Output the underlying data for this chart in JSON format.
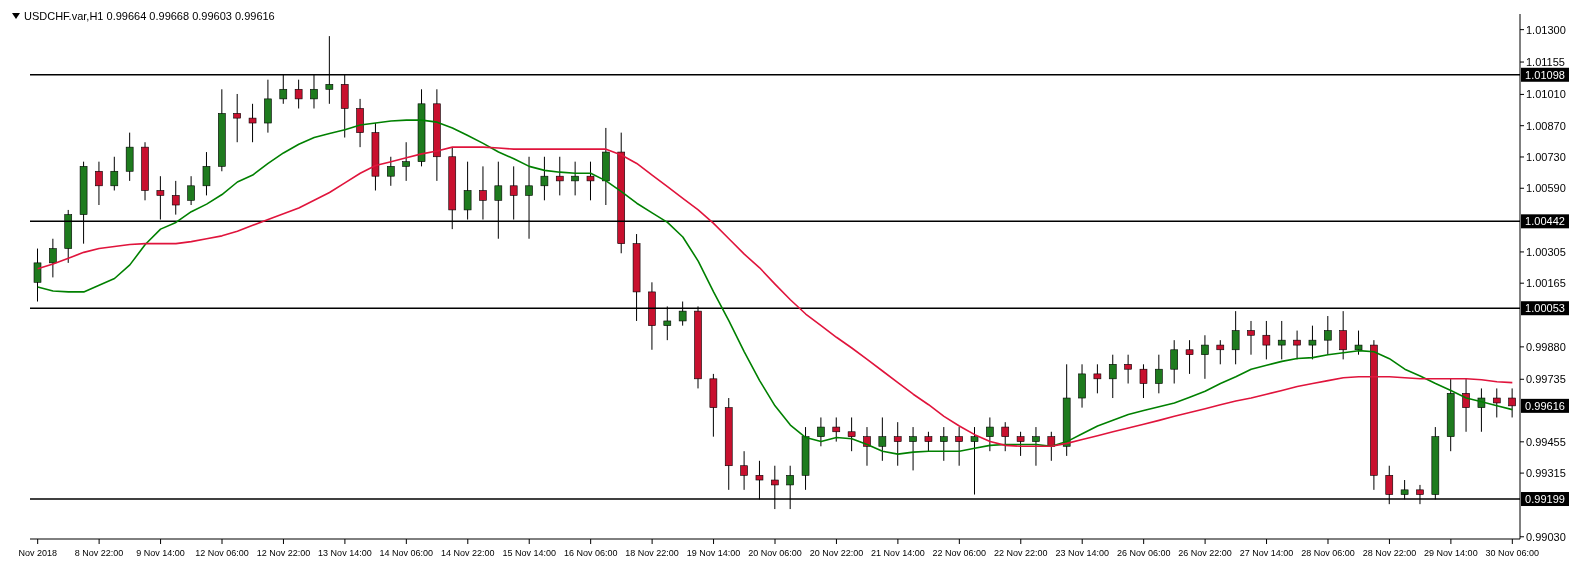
{
  "chart_data": {
    "type": "candlestick",
    "title": "USDCHF.var,H1 0.99664 0.99668 0.99603 0.99616",
    "categories": [
      "Nov 2018",
      null,
      null,
      null,
      "8 Nov 22:00",
      null,
      null,
      null,
      "9 Nov 14:00",
      null,
      null,
      null,
      "12 Nov 06:00",
      null,
      null,
      null,
      "12 Nov 22:00",
      null,
      null,
      null,
      "13 Nov 14:00",
      null,
      null,
      null,
      "14 Nov 06:00",
      null,
      null,
      null,
      "14 Nov 22:00",
      null,
      null,
      null,
      "15 Nov 14:00",
      null,
      null,
      null,
      "16 Nov 06:00",
      null,
      null,
      null,
      "18 Nov 22:00",
      null,
      null,
      null,
      "19 Nov 14:00",
      null,
      null,
      null,
      "20 Nov 06:00",
      null,
      null,
      null,
      "20 Nov 22:00",
      null,
      null,
      null,
      "21 Nov 14:00",
      null,
      null,
      null,
      "22 Nov 06:00",
      null,
      null,
      null,
      "22 Nov 22:00",
      null,
      null,
      null,
      "23 Nov 14:00",
      null,
      null,
      null,
      "26 Nov 06:00",
      null,
      null,
      null,
      "26 Nov 22:00",
      null,
      null,
      null,
      "27 Nov 14:00",
      null,
      null,
      null,
      "28 Nov 06:00",
      null,
      null,
      null,
      "28 Nov 22:00",
      null,
      null,
      null,
      "29 Nov 14:00",
      null,
      null,
      null,
      "30 Nov 06:00"
    ],
    "ohlc": [
      [
        1.00169,
        1.0032,
        1.00083,
        1.00256
      ],
      [
        1.00256,
        1.00364,
        1.00191,
        1.0032
      ],
      [
        1.0032,
        1.00493,
        1.00256,
        1.00472
      ],
      [
        1.00472,
        1.00709,
        1.00342,
        1.00688
      ],
      [
        1.00666,
        1.00709,
        1.00515,
        1.00601
      ],
      [
        1.00601,
        1.00731,
        1.0058,
        1.00666
      ],
      [
        1.00666,
        1.00839,
        1.00623,
        1.00774
      ],
      [
        1.00774,
        1.00796,
        1.00536,
        1.0058
      ],
      [
        1.0058,
        1.00644,
        1.0045,
        1.00558
      ],
      [
        1.00558,
        1.00623,
        1.00472,
        1.00515
      ],
      [
        1.00536,
        1.00644,
        1.00515,
        1.00601
      ],
      [
        1.00601,
        1.00752,
        1.00558,
        1.00688
      ],
      [
        1.00688,
        1.01033,
        1.00666,
        1.00925
      ],
      [
        1.00925,
        1.01012,
        1.00796,
        1.00904
      ],
      [
        1.00904,
        1.00968,
        1.00796,
        1.00882
      ],
      [
        1.00882,
        1.01076,
        1.00839,
        1.0099
      ],
      [
        1.0099,
        1.01098,
        1.00968,
        1.01033
      ],
      [
        1.01033,
        1.01076,
        1.00947,
        1.0099
      ],
      [
        1.0099,
        1.01098,
        1.00947,
        1.01033
      ],
      [
        1.01033,
        1.01271,
        1.00968,
        1.01055
      ],
      [
        1.01055,
        1.01098,
        1.00817,
        1.00947
      ],
      [
        1.00947,
        1.0099,
        1.00774,
        1.00839
      ],
      [
        1.00839,
        1.00882,
        1.0058,
        1.00644
      ],
      [
        1.00644,
        1.00731,
        1.00601,
        1.00688
      ],
      [
        1.00688,
        1.00796,
        1.00623,
        1.00709
      ],
      [
        1.00709,
        1.01033,
        1.00688,
        1.00968
      ],
      [
        1.00968,
        1.01033,
        1.00623,
        1.00731
      ],
      [
        1.00731,
        1.00774,
        1.00407,
        1.00493
      ],
      [
        1.00493,
        1.00709,
        1.0045,
        1.0058
      ],
      [
        1.0058,
        1.00688,
        1.0045,
        1.00536
      ],
      [
        1.00536,
        1.00709,
        1.00364,
        1.00601
      ],
      [
        1.00601,
        1.00688,
        1.0045,
        1.00558
      ],
      [
        1.00558,
        1.00731,
        1.00364,
        1.00601
      ],
      [
        1.00601,
        1.00731,
        1.00536,
        1.00644
      ],
      [
        1.00644,
        1.00731,
        1.00558,
        1.00623
      ],
      [
        1.00623,
        1.00709,
        1.00558,
        1.00644
      ],
      [
        1.00644,
        1.00709,
        1.00536,
        1.00623
      ],
      [
        1.00623,
        1.0086,
        1.00515,
        1.00752
      ],
      [
        1.00752,
        1.00839,
        1.00299,
        1.00342
      ],
      [
        1.00342,
        1.00385,
        0.99996,
        1.00126
      ],
      [
        1.00126,
        1.00169,
        0.99867,
        0.99975
      ],
      [
        0.99975,
        1.00061,
        0.9991,
        0.99996
      ],
      [
        0.99996,
        1.00083,
        0.99975,
        1.0004
      ],
      [
        1.0004,
        1.00061,
        0.99694,
        0.99737
      ],
      [
        0.99737,
        0.99759,
        0.99478,
        0.99608
      ],
      [
        0.99608,
        0.99651,
        0.9924,
        0.99348
      ],
      [
        0.99348,
        0.99413,
        0.9924,
        0.99305
      ],
      [
        0.99305,
        0.9937,
        0.99197,
        0.99284
      ],
      [
        0.99284,
        0.99348,
        0.99154,
        0.99262
      ],
      [
        0.99262,
        0.99348,
        0.99154,
        0.99305
      ],
      [
        0.99305,
        0.99521,
        0.9924,
        0.99478
      ],
      [
        0.99478,
        0.99564,
        0.99435,
        0.99521
      ],
      [
        0.99521,
        0.99564,
        0.99456,
        0.995
      ],
      [
        0.995,
        0.99564,
        0.99413,
        0.99478
      ],
      [
        0.99478,
        0.99521,
        0.99348,
        0.99435
      ],
      [
        0.99435,
        0.99564,
        0.9937,
        0.99478
      ],
      [
        0.99478,
        0.99543,
        0.99348,
        0.99456
      ],
      [
        0.99456,
        0.99521,
        0.99327,
        0.99478
      ],
      [
        0.99478,
        0.995,
        0.99413,
        0.99456
      ],
      [
        0.99456,
        0.99521,
        0.9937,
        0.99478
      ],
      [
        0.99478,
        0.99521,
        0.99348,
        0.99456
      ],
      [
        0.99456,
        0.99521,
        0.99219,
        0.99478
      ],
      [
        0.99478,
        0.99564,
        0.99413,
        0.99521
      ],
      [
        0.99521,
        0.99543,
        0.99413,
        0.99478
      ],
      [
        0.99478,
        0.995,
        0.99392,
        0.99456
      ],
      [
        0.99456,
        0.99521,
        0.99348,
        0.99478
      ],
      [
        0.99478,
        0.995,
        0.9937,
        0.99435
      ],
      [
        0.99435,
        0.99802,
        0.99392,
        0.99651
      ],
      [
        0.99651,
        0.99802,
        0.99608,
        0.99759
      ],
      [
        0.99759,
        0.99802,
        0.99672,
        0.99737
      ],
      [
        0.99737,
        0.99845,
        0.99651,
        0.99802
      ],
      [
        0.99802,
        0.99845,
        0.99716,
        0.9978
      ],
      [
        0.9978,
        0.99802,
        0.99651,
        0.99716
      ],
      [
        0.99716,
        0.99845,
        0.99672,
        0.9978
      ],
      [
        0.9978,
        0.9991,
        0.99716,
        0.99867
      ],
      [
        0.99867,
        0.9991,
        0.99759,
        0.99845
      ],
      [
        0.99845,
        0.99932,
        0.99737,
        0.99888
      ],
      [
        0.99888,
        0.9991,
        0.99802,
        0.99867
      ],
      [
        0.99867,
        1.0004,
        0.99802,
        0.99953
      ],
      [
        0.99953,
        0.99996,
        0.99845,
        0.99932
      ],
      [
        0.99932,
        0.99996,
        0.99824,
        0.99888
      ],
      [
        0.99888,
        0.99996,
        0.99824,
        0.9991
      ],
      [
        0.9991,
        0.99953,
        0.99824,
        0.99888
      ],
      [
        0.99888,
        0.99975,
        0.99824,
        0.9991
      ],
      [
        0.9991,
        1.00018,
        0.99845,
        0.99953
      ],
      [
        0.99953,
        1.0004,
        0.99824,
        0.99867
      ],
      [
        0.99867,
        0.99953,
        0.99845,
        0.99888
      ],
      [
        0.99888,
        0.9991,
        0.9924,
        0.99305
      ],
      [
        0.99305,
        0.99348,
        0.99176,
        0.99219
      ],
      [
        0.99219,
        0.99284,
        0.99197,
        0.9924
      ],
      [
        0.9924,
        0.99262,
        0.99176,
        0.99219
      ],
      [
        0.99219,
        0.99521,
        0.99197,
        0.99478
      ],
      [
        0.99478,
        0.99737,
        0.99413,
        0.99672
      ],
      [
        0.99672,
        0.99737,
        0.995,
        0.99608
      ],
      [
        0.99608,
        0.99694,
        0.995,
        0.99651
      ],
      [
        0.99651,
        0.99694,
        0.99564,
        0.99629
      ],
      [
        0.99651,
        0.99694,
        0.99564,
        0.99616
      ]
    ],
    "colors": [
      "#1e7b1e",
      "#1e7b1e",
      "#1e7b1e",
      "#1e7b1e",
      "#c8102e",
      "#1e7b1e",
      "#1e7b1e",
      "#c8102e",
      "#c8102e",
      "#c8102e",
      "#1e7b1e",
      "#1e7b1e",
      "#1e7b1e",
      "#c8102e",
      "#c8102e",
      "#1e7b1e",
      "#1e7b1e",
      "#c8102e",
      "#1e7b1e",
      "#1e7b1e",
      "#c8102e",
      "#c8102e",
      "#c8102e",
      "#1e7b1e",
      "#1e7b1e",
      "#1e7b1e",
      "#c8102e",
      "#c8102e",
      "#1e7b1e",
      "#c8102e",
      "#1e7b1e",
      "#c8102e",
      "#1e7b1e",
      "#1e7b1e",
      "#c8102e",
      "#1e7b1e",
      "#c8102e",
      "#1e7b1e",
      "#c8102e",
      "#c8102e",
      "#c8102e",
      "#1e7b1e",
      "#1e7b1e",
      "#c8102e",
      "#c8102e",
      "#c8102e",
      "#c8102e",
      "#c8102e",
      "#c8102e",
      "#1e7b1e",
      "#1e7b1e",
      "#1e7b1e",
      "#c8102e",
      "#c8102e",
      "#c8102e",
      "#1e7b1e",
      "#c8102e",
      "#1e7b1e",
      "#c8102e",
      "#1e7b1e",
      "#c8102e",
      "#1e7b1e",
      "#1e7b1e",
      "#c8102e",
      "#c8102e",
      "#1e7b1e",
      "#c8102e",
      "#1e7b1e",
      "#1e7b1e",
      "#c8102e",
      "#1e7b1e",
      "#c8102e",
      "#c8102e",
      "#1e7b1e",
      "#1e7b1e",
      "#c8102e",
      "#1e7b1e",
      "#c8102e",
      "#1e7b1e",
      "#c8102e",
      "#c8102e",
      "#1e7b1e",
      "#c8102e",
      "#1e7b1e",
      "#1e7b1e",
      "#c8102e",
      "#1e7b1e",
      "#c8102e",
      "#c8102e",
      "#1e7b1e",
      "#c8102e",
      "#1e7b1e",
      "#1e7b1e",
      "#c8102e",
      "#1e7b1e",
      "#c8102e",
      "#c8102e"
    ],
    "series": [
      {
        "type": "line",
        "color": "#008000",
        "values": [
          1.00148,
          1.0013,
          1.00126,
          1.00126,
          1.00156,
          1.00186,
          1.00247,
          1.00338,
          1.00407,
          1.00437,
          1.00485,
          1.00519,
          1.00562,
          1.00618,
          1.00649,
          1.00701,
          1.00748,
          1.00787,
          1.00817,
          1.00835,
          1.00852,
          1.00873,
          1.00882,
          1.00891,
          1.00895,
          1.00895,
          1.00886,
          1.0086,
          1.00826,
          1.00791,
          1.00752,
          1.00722,
          1.00688,
          1.0067,
          1.00662,
          1.00657,
          1.00657,
          1.00623,
          1.00575,
          1.00523,
          1.0048,
          1.00437,
          1.00372,
          1.00264,
          1.00126,
          0.99996,
          0.99858,
          0.99729,
          0.99616,
          0.9953,
          0.99474,
          0.99456,
          0.99474,
          0.99469,
          0.99443,
          0.99413,
          0.994,
          0.99409,
          0.99413,
          0.99413,
          0.99413,
          0.99426,
          0.99439,
          0.99443,
          0.99443,
          0.99443,
          0.99435,
          0.99456,
          0.99491,
          0.99526,
          0.99551,
          0.99577,
          0.99595,
          0.99612,
          0.99629,
          0.99655,
          0.99681,
          0.99716,
          0.99746,
          0.9978,
          0.99798,
          0.99815,
          0.99828,
          0.99832,
          0.99845,
          0.99854,
          0.99863,
          0.99858,
          0.99827,
          0.9978,
          0.9975,
          0.99716,
          0.99685,
          0.99651,
          0.99634,
          0.99616,
          0.99599
        ]
      },
      {
        "type": "line",
        "color": "#e0143c",
        "values": [
          1.0023,
          1.00251,
          1.00277,
          1.00303,
          1.0032,
          1.00329,
          1.00338,
          1.00342,
          1.00342,
          1.00342,
          1.00351,
          1.00364,
          1.00377,
          1.00398,
          1.00424,
          1.0045,
          1.00476,
          1.00502,
          1.00536,
          1.00571,
          1.00614,
          1.00657,
          1.00692,
          1.00709,
          1.00727,
          1.00744,
          1.00757,
          1.00774,
          1.00774,
          1.00774,
          1.0077,
          1.00765,
          1.00765,
          1.00765,
          1.00765,
          1.00765,
          1.00765,
          1.00765,
          1.00739,
          1.00701,
          1.00649,
          1.00597,
          1.00545,
          1.00493,
          1.00433,
          1.00364,
          1.00295,
          1.00234,
          1.00161,
          1.00091,
          1.00027,
          0.99975,
          0.99923,
          0.99875,
          0.99824,
          0.99772,
          0.9972,
          0.99668,
          0.99621,
          0.99569,
          0.99526,
          0.99487,
          0.99456,
          0.99439,
          0.99435,
          0.99435,
          0.99435,
          0.99448,
          0.99465,
          0.99482,
          0.995,
          0.99517,
          0.99534,
          0.99551,
          0.99569,
          0.99586,
          0.99603,
          0.99621,
          0.99638,
          0.99651,
          0.99668,
          0.99685,
          0.99703,
          0.99716,
          0.99729,
          0.99742,
          0.99746,
          0.99746,
          0.99746,
          0.99742,
          0.99737,
          0.99737,
          0.99737,
          0.99737,
          0.99733,
          0.99724,
          0.9972
        ]
      }
    ],
    "ylim": [
      0.9902,
      1.0137
    ],
    "yticks": [
      {
        "value": 1.013,
        "label": "1.01300"
      },
      {
        "value": 1.01155,
        "label": "1.01155"
      },
      {
        "value": 1.0101,
        "label": "1.01010"
      },
      {
        "value": 1.0087,
        "label": "1.00870"
      },
      {
        "value": 1.0073,
        "label": "1.00730"
      },
      {
        "value": 1.0059,
        "label": "1.00590"
      },
      {
        "value": 1.00305,
        "label": "1.00305"
      },
      {
        "value": 1.00165,
        "label": "1.00165"
      },
      {
        "value": 0.9988,
        "label": "0.99880"
      },
      {
        "value": 0.99735,
        "label": "0.99735"
      },
      {
        "value": 0.99455,
        "label": "0.99455"
      },
      {
        "value": 0.99315,
        "label": "0.99315"
      },
      {
        "value": 0.9903,
        "label": "0.99030"
      }
    ],
    "ref_lines": [
      {
        "axis": "y",
        "value": 1.01098,
        "label": "1.01098",
        "color": "#000000"
      },
      {
        "axis": "y",
        "value": 1.00442,
        "label": "1.00442",
        "color": "#000000"
      },
      {
        "axis": "y",
        "value": 1.00053,
        "label": "1.00053",
        "color": "#000000"
      },
      {
        "axis": "y",
        "value": 0.99199,
        "label": "0.99199",
        "color": "#000000"
      }
    ],
    "annotations": [
      "0.99616"
    ]
  }
}
